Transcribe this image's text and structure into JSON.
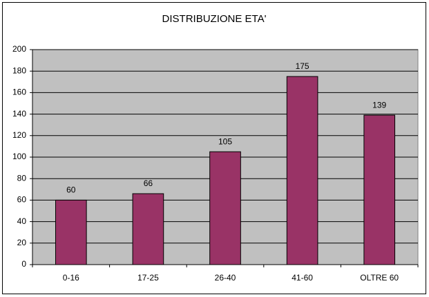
{
  "chart_data": {
    "type": "bar",
    "title": "DISTRIBUZIONE ETA'",
    "categories": [
      "0-16",
      "17-25",
      "26-40",
      "41-60",
      "OLTRE 60"
    ],
    "values": [
      60,
      66,
      105,
      175,
      139
    ],
    "color": "#993366",
    "ylim": [
      0,
      200
    ],
    "yticks": [
      0,
      20,
      40,
      60,
      80,
      100,
      120,
      140,
      160,
      180,
      200
    ],
    "grid": true,
    "data_labels": true
  }
}
